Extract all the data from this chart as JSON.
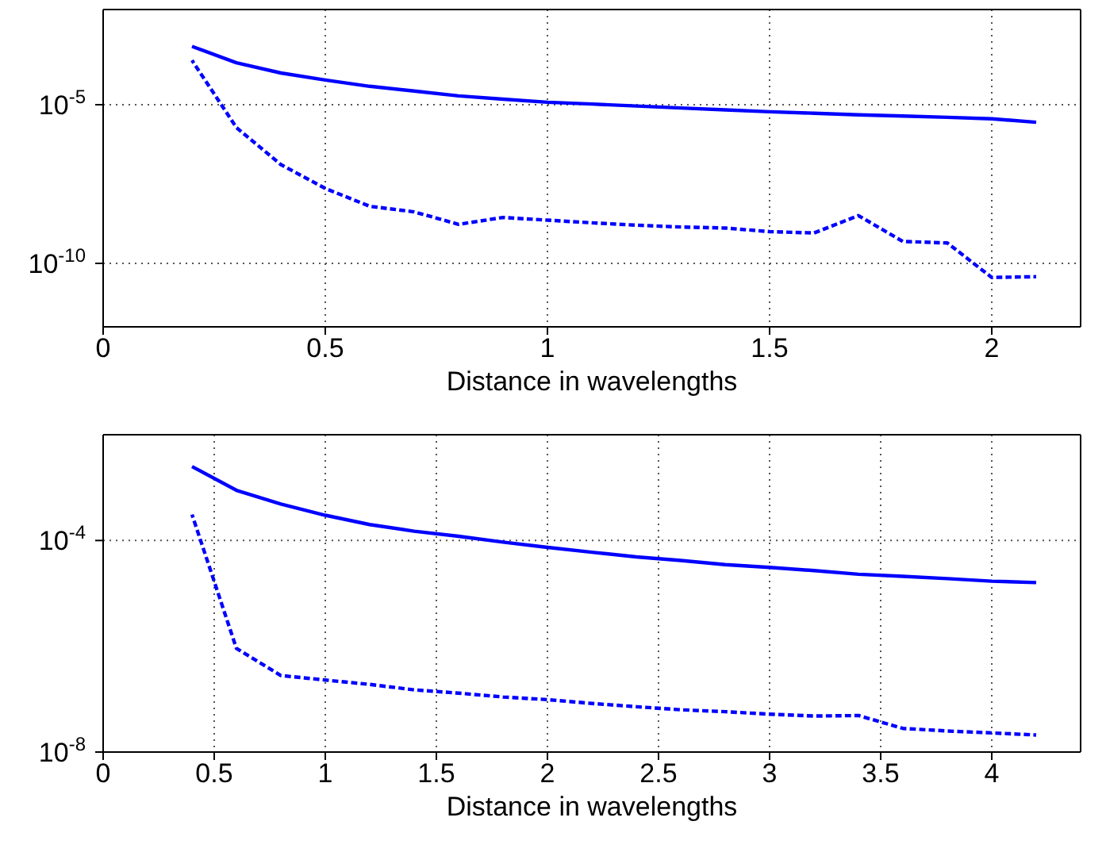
{
  "chart_data": [
    {
      "type": "line",
      "xlabel": "Distance in wavelengths",
      "log": "y",
      "grid": true,
      "marker": "none",
      "xlim": [
        0,
        2.2
      ],
      "xticks": [
        0,
        0.5,
        1,
        1.5,
        2
      ],
      "ylim": [
        1e-12,
        0.01
      ],
      "yticks": [
        {
          "value": 1e-10,
          "label": "10$^{-10}$"
        },
        {
          "value": 1e-05,
          "label": "10$^{-5}$"
        }
      ],
      "series": [
        {
          "color": "#0000ff",
          "line_style": "solid",
          "x": [
            0.2,
            0.3,
            0.4,
            0.5,
            0.6,
            0.7,
            0.8,
            0.9,
            1.0,
            1.1,
            1.2,
            1.3,
            1.4,
            1.5,
            1.6,
            1.7,
            1.8,
            1.9,
            2.0,
            2.1
          ],
          "values": [
            0.00069,
            0.00021,
            0.0001,
            6e-05,
            3.8e-05,
            2.7e-05,
            1.9e-05,
            1.5e-05,
            1.2e-05,
            1.05e-05,
            9.1e-06,
            7.9e-06,
            6.9e-06,
            6e-06,
            5.4e-06,
            4.8e-06,
            4.4e-06,
            4e-06,
            3.6e-06,
            2.8e-06
          ]
        },
        {
          "color": "#0000ff",
          "line_style": "dashed",
          "x": [
            0.2,
            0.3,
            0.4,
            0.5,
            0.6,
            0.7,
            0.8,
            0.9,
            1.0,
            1.1,
            1.2,
            1.3,
            1.4,
            1.5,
            1.6,
            1.7,
            1.8,
            1.9,
            2.0,
            2.1
          ],
          "values": [
            0.00025,
            1.9e-06,
            1.3e-07,
            2.3e-08,
            6.3e-09,
            4.2e-09,
            1.7e-09,
            2.8e-09,
            2.3e-09,
            1.9e-09,
            1.6e-09,
            1.4e-09,
            1.3e-09,
            1e-09,
            9.1e-10,
            3.2e-09,
            4.9e-10,
            4.4e-10,
            3.6e-11,
            3.8e-11
          ]
        }
      ]
    },
    {
      "type": "line",
      "xlabel": "Distance in wavelengths",
      "log": "y",
      "grid": true,
      "marker": "none",
      "xlim": [
        0,
        4.4
      ],
      "xticks": [
        0,
        0.5,
        1,
        1.5,
        2,
        2.5,
        3,
        3.5,
        4
      ],
      "ylim": [
        1e-08,
        0.01
      ],
      "yticks": [
        {
          "value": 1e-08,
          "label": "10$^{-8}$"
        },
        {
          "value": 0.0001,
          "label": "10$^{-4}$"
        }
      ],
      "series": [
        {
          "color": "#0000ff",
          "line_style": "solid",
          "x": [
            0.4,
            0.6,
            0.8,
            1.0,
            1.2,
            1.4,
            1.6,
            1.8,
            2.0,
            2.2,
            2.4,
            2.6,
            2.8,
            3.0,
            3.2,
            3.4,
            3.6,
            3.8,
            4.0,
            4.2
          ],
          "values": [
            0.0025,
            0.00089,
            0.00049,
            0.0003,
            0.0002,
            0.00015,
            0.00012,
            9.3e-05,
            7.4e-05,
            6e-05,
            4.9e-05,
            4.2e-05,
            3.5e-05,
            3.1e-05,
            2.7e-05,
            2.3e-05,
            2.1e-05,
            1.9e-05,
            1.7e-05,
            1.6e-05
          ]
        },
        {
          "color": "#0000ff",
          "line_style": "dashed",
          "x": [
            0.4,
            0.6,
            0.8,
            1.0,
            1.2,
            1.4,
            1.6,
            1.8,
            2.0,
            2.2,
            2.4,
            2.6,
            2.8,
            3.0,
            3.2,
            3.4,
            3.6,
            3.8,
            4.0,
            4.2
          ],
          "values": [
            0.00031,
            9.1e-07,
            2.8e-07,
            2.3e-07,
            1.9e-07,
            1.5e-07,
            1.3e-07,
            1.1e-07,
            9.8e-08,
            8.3e-08,
            7.2e-08,
            6.3e-08,
            5.8e-08,
            5.2e-08,
            4.8e-08,
            4.9e-08,
            2.8e-08,
            2.5e-08,
            2.3e-08,
            2.1e-08
          ]
        }
      ]
    }
  ]
}
